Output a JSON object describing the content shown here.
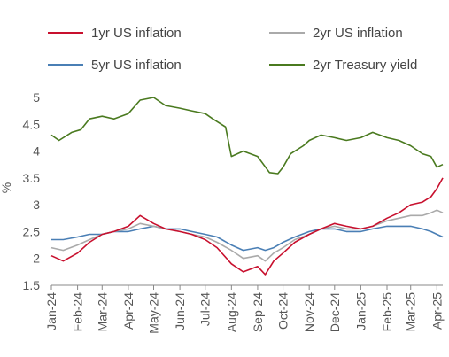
{
  "chart_data": {
    "type": "line",
    "ylabel": "%",
    "ylim": [
      1.5,
      5
    ],
    "yticks": [
      "1.5",
      "2",
      "2.5",
      "3",
      "3.5",
      "4",
      "4.5",
      "5"
    ],
    "x_labels": [
      "Jan-24",
      "Feb-24",
      "Mar-24",
      "Apr-24",
      "May-24",
      "Jun-24",
      "Jul-24",
      "Aug-24",
      "Sep-24",
      "Oct-24",
      "Nov-24",
      "Dec-24",
      "Jan-25",
      "Feb-25",
      "Mar-25",
      "Apr-25"
    ],
    "legend_position": "top",
    "grid": false,
    "series": [
      {
        "name": "1yr US inflation",
        "color": "#c8102e",
        "x": [
          "2024-01-01",
          "2024-01-15",
          "2024-02-01",
          "2024-02-15",
          "2024-03-01",
          "2024-03-15",
          "2024-04-01",
          "2024-04-15",
          "2024-05-01",
          "2024-05-15",
          "2024-06-01",
          "2024-06-15",
          "2024-07-01",
          "2024-07-15",
          "2024-08-01",
          "2024-08-15",
          "2024-09-01",
          "2024-09-10",
          "2024-09-20",
          "2024-10-01",
          "2024-10-15",
          "2024-11-01",
          "2024-11-15",
          "2024-12-01",
          "2024-12-15",
          "2025-01-01",
          "2025-01-15",
          "2025-02-01",
          "2025-02-15",
          "2025-03-01",
          "2025-03-15",
          "2025-03-25",
          "2025-04-01",
          "2025-04-08"
        ],
        "y": [
          2.05,
          1.95,
          2.1,
          2.3,
          2.45,
          2.5,
          2.6,
          2.8,
          2.65,
          2.55,
          2.5,
          2.45,
          2.35,
          2.2,
          1.9,
          1.75,
          1.85,
          1.7,
          1.95,
          2.1,
          2.3,
          2.45,
          2.55,
          2.65,
          2.6,
          2.55,
          2.6,
          2.75,
          2.85,
          3.0,
          3.05,
          3.15,
          3.3,
          3.5
        ]
      },
      {
        "name": "2yr US inflation",
        "color": "#aaaaaa",
        "x": [
          "2024-01-01",
          "2024-01-15",
          "2024-02-01",
          "2024-02-15",
          "2024-03-01",
          "2024-03-15",
          "2024-04-01",
          "2024-04-15",
          "2024-05-01",
          "2024-05-15",
          "2024-06-01",
          "2024-06-15",
          "2024-07-01",
          "2024-07-15",
          "2024-08-01",
          "2024-08-15",
          "2024-09-01",
          "2024-09-10",
          "2024-09-20",
          "2024-10-01",
          "2024-10-15",
          "2024-11-01",
          "2024-11-15",
          "2024-12-01",
          "2024-12-15",
          "2025-01-01",
          "2025-01-15",
          "2025-02-01",
          "2025-02-15",
          "2025-03-01",
          "2025-03-15",
          "2025-03-25",
          "2025-04-01",
          "2025-04-08"
        ],
        "y": [
          2.2,
          2.15,
          2.25,
          2.35,
          2.45,
          2.5,
          2.55,
          2.65,
          2.6,
          2.55,
          2.5,
          2.45,
          2.4,
          2.3,
          2.15,
          2.0,
          2.05,
          1.95,
          2.1,
          2.2,
          2.35,
          2.45,
          2.55,
          2.6,
          2.55,
          2.55,
          2.6,
          2.7,
          2.75,
          2.8,
          2.8,
          2.85,
          2.9,
          2.85
        ]
      },
      {
        "name": "5yr US inflation",
        "color": "#4a7fb5",
        "x": [
          "2024-01-01",
          "2024-01-15",
          "2024-02-01",
          "2024-02-15",
          "2024-03-01",
          "2024-03-15",
          "2024-04-01",
          "2024-04-15",
          "2024-05-01",
          "2024-05-15",
          "2024-06-01",
          "2024-06-15",
          "2024-07-01",
          "2024-07-15",
          "2024-08-01",
          "2024-08-15",
          "2024-09-01",
          "2024-09-10",
          "2024-09-20",
          "2024-10-01",
          "2024-10-15",
          "2024-11-01",
          "2024-11-15",
          "2024-12-01",
          "2024-12-15",
          "2025-01-01",
          "2025-01-15",
          "2025-02-01",
          "2025-02-15",
          "2025-03-01",
          "2025-03-15",
          "2025-03-25",
          "2025-04-01",
          "2025-04-08"
        ],
        "y": [
          2.35,
          2.35,
          2.4,
          2.45,
          2.45,
          2.5,
          2.5,
          2.55,
          2.6,
          2.55,
          2.55,
          2.5,
          2.45,
          2.4,
          2.25,
          2.15,
          2.2,
          2.15,
          2.2,
          2.3,
          2.4,
          2.5,
          2.55,
          2.55,
          2.5,
          2.5,
          2.55,
          2.6,
          2.6,
          2.6,
          2.55,
          2.5,
          2.45,
          2.4
        ]
      },
      {
        "name": "2yr Treasury yield",
        "color": "#4a7a1f",
        "x": [
          "2024-01-01",
          "2024-01-10",
          "2024-01-25",
          "2024-02-05",
          "2024-02-15",
          "2024-03-01",
          "2024-03-15",
          "2024-04-01",
          "2024-04-15",
          "2024-05-01",
          "2024-05-15",
          "2024-06-01",
          "2024-06-15",
          "2024-07-01",
          "2024-07-10",
          "2024-07-25",
          "2024-08-01",
          "2024-08-15",
          "2024-09-01",
          "2024-09-15",
          "2024-09-25",
          "2024-10-01",
          "2024-10-10",
          "2024-10-25",
          "2024-11-01",
          "2024-11-15",
          "2024-12-01",
          "2024-12-15",
          "2025-01-01",
          "2025-01-15",
          "2025-02-01",
          "2025-02-15",
          "2025-03-01",
          "2025-03-15",
          "2025-03-25",
          "2025-04-01",
          "2025-04-08"
        ],
        "y": [
          4.3,
          4.2,
          4.35,
          4.4,
          4.6,
          4.65,
          4.6,
          4.7,
          4.95,
          5.0,
          4.85,
          4.8,
          4.75,
          4.7,
          4.6,
          4.45,
          3.9,
          4.0,
          3.9,
          3.6,
          3.58,
          3.7,
          3.95,
          4.1,
          4.2,
          4.3,
          4.25,
          4.2,
          4.25,
          4.35,
          4.25,
          4.2,
          4.1,
          3.95,
          3.9,
          3.7,
          3.75
        ]
      }
    ]
  }
}
